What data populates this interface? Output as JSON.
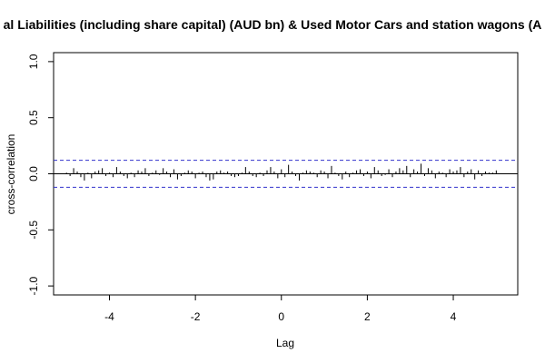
{
  "chart_data": {
    "type": "bar",
    "title": "al Liabilities (including share capital) (AUD bn)  & Used Motor Cars and station wagons (A",
    "xlabel": "Lag",
    "ylabel": "cross-correlation",
    "xlim": [
      -5.3,
      5.5
    ],
    "ylim": [
      -1.08,
      1.08
    ],
    "x_ticks": [
      -4,
      -2,
      0,
      2,
      4
    ],
    "x_tick_labels": [
      "-4",
      "-2",
      "0",
      "2",
      "4"
    ],
    "y_ticks": [
      -1.0,
      -0.5,
      0.0,
      0.5,
      1.0
    ],
    "y_tick_labels": [
      "-1.0",
      "-0.5",
      "0.0",
      "0.5",
      "1.0"
    ],
    "confidence_bounds": [
      0.12,
      -0.12
    ],
    "bound_color": "#3333cc",
    "grid": false,
    "x": [
      -5.0,
      -4.9167,
      -4.8333,
      -4.75,
      -4.6667,
      -4.5833,
      -4.5,
      -4.4167,
      -4.3333,
      -4.25,
      -4.1667,
      -4.0833,
      -4.0,
      -3.9167,
      -3.8333,
      -3.75,
      -3.6667,
      -3.5833,
      -3.5,
      -3.4167,
      -3.3333,
      -3.25,
      -3.1667,
      -3.0833,
      -3.0,
      -2.9167,
      -2.8333,
      -2.75,
      -2.6667,
      -2.5833,
      -2.5,
      -2.4167,
      -2.3333,
      -2.25,
      -2.1667,
      -2.0833,
      -2.0,
      -1.9167,
      -1.8333,
      -1.75,
      -1.6667,
      -1.5833,
      -1.5,
      -1.4167,
      -1.3333,
      -1.25,
      -1.1667,
      -1.0833,
      -1.0,
      -0.9167,
      -0.8333,
      -0.75,
      -0.6667,
      -0.5833,
      -0.5,
      -0.4167,
      -0.3333,
      -0.25,
      -0.1667,
      -0.0833,
      0.0,
      0.0833,
      0.1667,
      0.25,
      0.3333,
      0.4167,
      0.5,
      0.5833,
      0.6667,
      0.75,
      0.8333,
      0.9167,
      1.0,
      1.0833,
      1.1667,
      1.25,
      1.3333,
      1.4167,
      1.5,
      1.5833,
      1.6667,
      1.75,
      1.8333,
      1.9167,
      2.0,
      2.0833,
      2.1667,
      2.25,
      2.3333,
      2.4167,
      2.5,
      2.5833,
      2.6667,
      2.75,
      2.8333,
      2.9167,
      3.0,
      3.0833,
      3.1667,
      3.25,
      3.3333,
      3.4167,
      3.5,
      3.5833,
      3.6667,
      3.75,
      3.8333,
      3.9167,
      4.0,
      4.0833,
      4.1667,
      4.25,
      4.3333,
      4.4167,
      4.5,
      4.5833,
      4.6667,
      4.75,
      4.8333,
      4.9167,
      5.0
    ],
    "values": [
      0.01,
      -0.02,
      0.05,
      0.02,
      -0.03,
      -0.06,
      0.01,
      -0.04,
      0.02,
      0.03,
      0.05,
      -0.02,
      0.01,
      -0.03,
      0.06,
      0.02,
      -0.02,
      -0.04,
      0.01,
      -0.03,
      0.03,
      0.02,
      0.05,
      -0.02,
      0.01,
      0.03,
      -0.01,
      0.05,
      0.02,
      -0.03,
      0.04,
      -0.05,
      -0.02,
      0.01,
      0.03,
      0.02,
      -0.04,
      0.01,
      0.02,
      -0.03,
      -0.06,
      -0.05,
      0.02,
      0.03,
      0.01,
      0.02,
      -0.02,
      -0.03,
      -0.02,
      0.01,
      0.06,
      0.02,
      -0.02,
      -0.03,
      0.01,
      -0.02,
      0.03,
      0.06,
      0.02,
      -0.04,
      0.04,
      -0.03,
      0.08,
      0.02,
      -0.02,
      -0.06,
      0.01,
      0.03,
      0.02,
      0.01,
      -0.03,
      0.03,
      0.02,
      -0.04,
      0.07,
      0.01,
      -0.02,
      -0.05,
      0.02,
      -0.03,
      0.01,
      0.03,
      0.04,
      -0.02,
      0.02,
      -0.04,
      0.06,
      0.03,
      -0.02,
      -0.01,
      0.04,
      -0.03,
      0.02,
      0.05,
      0.03,
      0.07,
      -0.03,
      0.04,
      0.02,
      0.09,
      -0.02,
      0.05,
      0.03,
      -0.04,
      0.02,
      0.01,
      -0.03,
      0.04,
      0.02,
      0.03,
      0.06,
      -0.03,
      0.02,
      0.04,
      -0.05,
      0.03,
      -0.02,
      0.02,
      0.01,
      0.01,
      0.03
    ]
  }
}
